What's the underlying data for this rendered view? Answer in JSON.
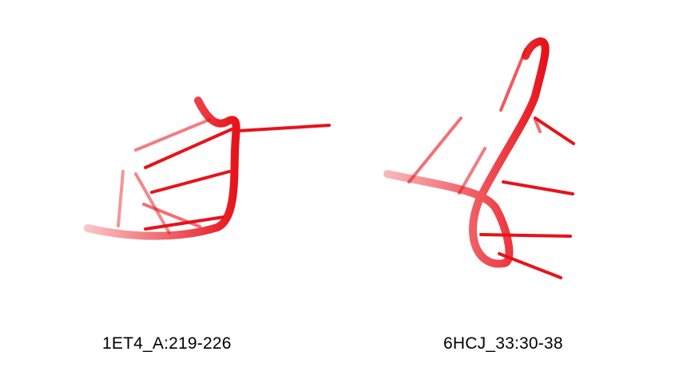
{
  "panels": [
    {
      "label": "1ET4_A:219-226",
      "color": "#e8121a"
    },
    {
      "label": "6HCJ_33:30-38",
      "color": "#e8121a"
    }
  ]
}
